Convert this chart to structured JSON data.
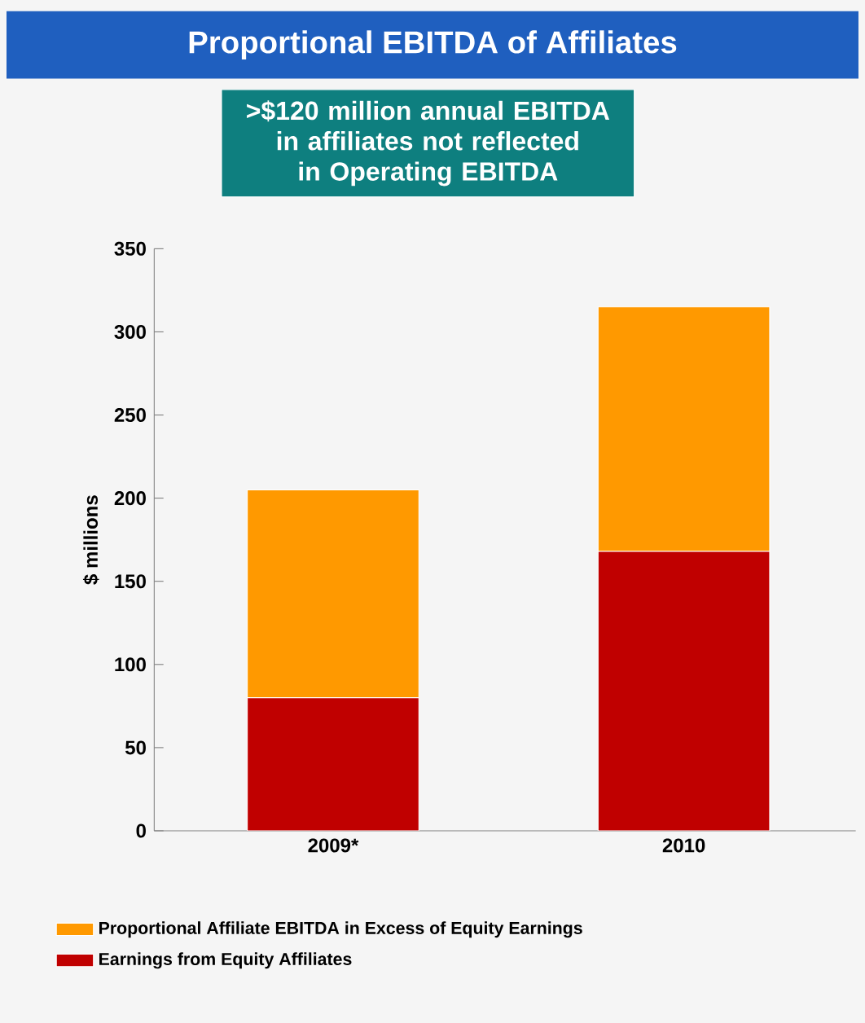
{
  "chart_data": {
    "type": "bar",
    "title": "Proportional EBITDA of Affiliates",
    "ylabel": "$ millions",
    "categories": [
      "2009*",
      "2010"
    ],
    "stacked": true,
    "series": [
      {
        "name": "Earnings from Equity Affiliates",
        "color": "#c00000",
        "values": [
          80,
          168
        ]
      },
      {
        "name": "Proportional Affiliate EBITDA in Excess of Equity Earnings",
        "color": "#ff9900",
        "values": [
          125,
          147
        ]
      }
    ],
    "ylim": [
      0,
      350
    ],
    "yticks": [
      0,
      50,
      100,
      150,
      200,
      250,
      300,
      350
    ],
    "legend": "bottom",
    "annotations": [
      ">$120 million annual EBITDA in affiliates not reflected in Operating EBITDA"
    ]
  }
}
